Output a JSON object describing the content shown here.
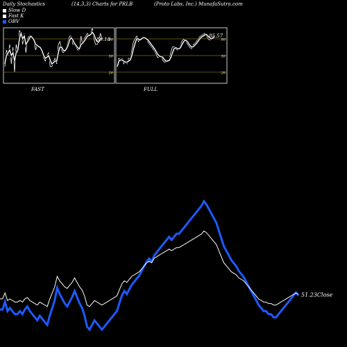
{
  "header": {
    "left": "Daily Stochastics",
    "middle": "(14,3,3) Charts for PRLB",
    "right": "(Proto  Labs,  Inc.) MunafaSutra.com"
  },
  "legend": [
    {
      "label": "Slow  D",
      "color": "#ffffff"
    },
    {
      "label": "Fast  K",
      "color": "#ffffff"
    },
    {
      "label": "OBV",
      "color": "#1e5aff"
    }
  ],
  "colors": {
    "background": "#000000",
    "line": "#ffffff",
    "obv": "#1e5aff",
    "level": "#8b6914"
  },
  "chart_data": [
    {
      "type": "line",
      "title": "FAST",
      "levels": [
        80,
        50,
        20
      ],
      "ylim": [
        0,
        100
      ],
      "value_label": "80.18",
      "series": [
        {
          "name": "Fast K",
          "values": [
            30,
            60,
            50,
            70,
            35,
            65,
            20,
            70,
            55,
            95,
            90,
            70,
            90,
            55,
            80,
            85,
            85,
            80,
            75,
            60,
            70,
            65,
            65,
            55,
            45,
            40,
            50,
            55,
            30,
            30,
            40,
            45,
            35,
            70,
            75,
            60,
            55,
            60,
            65,
            75,
            85,
            85,
            70,
            70,
            65,
            60,
            60,
            85,
            70,
            80,
            85,
            90,
            85,
            90,
            100,
            80,
            70,
            70,
            75,
            90,
            80
          ]
        },
        {
          "name": "Slow D",
          "values": [
            35,
            50,
            55,
            60,
            50,
            55,
            40,
            55,
            60,
            80,
            90,
            80,
            85,
            70,
            75,
            80,
            85,
            82,
            78,
            70,
            68,
            66,
            64,
            58,
            50,
            45,
            47,
            50,
            42,
            35,
            37,
            40,
            40,
            55,
            65,
            65,
            60,
            58,
            62,
            68,
            78,
            82,
            78,
            72,
            68,
            64,
            62,
            70,
            72,
            76,
            80,
            85,
            86,
            88,
            92,
            88,
            80,
            75,
            74,
            80,
            80
          ]
        }
      ]
    },
    {
      "type": "line",
      "title": "FULL",
      "levels": [
        80,
        50,
        20
      ],
      "ylim": [
        0,
        100
      ],
      "value_label": "85.57",
      "series": [
        {
          "name": "Fast K",
          "values": [
            30,
            45,
            40,
            45,
            35,
            40,
            35,
            45,
            45,
            60,
            75,
            80,
            85,
            75,
            80,
            82,
            84,
            82,
            80,
            74,
            70,
            66,
            62,
            58,
            52,
            46,
            48,
            50,
            42,
            38,
            38,
            42,
            42,
            55,
            65,
            66,
            62,
            60,
            62,
            68,
            76,
            80,
            78,
            72,
            68,
            64,
            62,
            70,
            72,
            76,
            80,
            84,
            86,
            88,
            90,
            86,
            80,
            78,
            80,
            84,
            86
          ]
        },
        {
          "name": "Slow D",
          "values": [
            30,
            40,
            42,
            42,
            40,
            38,
            38,
            40,
            42,
            50,
            62,
            72,
            80,
            80,
            78,
            80,
            82,
            82,
            80,
            78,
            74,
            70,
            66,
            62,
            57,
            52,
            49,
            48,
            47,
            43,
            40,
            40,
            41,
            46,
            54,
            62,
            64,
            63,
            62,
            64,
            70,
            75,
            78,
            76,
            72,
            68,
            65,
            66,
            69,
            72,
            76,
            80,
            83,
            85,
            87,
            88,
            85,
            82,
            80,
            81,
            84
          ]
        }
      ]
    },
    {
      "type": "line",
      "value_label": "51.23",
      "label_suffix": "Close",
      "series": [
        {
          "name": "Close",
          "values": [
            48,
            48,
            52,
            47,
            48,
            47,
            46,
            46,
            47,
            46,
            48,
            49,
            47,
            46,
            45,
            44,
            46,
            45,
            44,
            43,
            48,
            52,
            56,
            63,
            60,
            58,
            56,
            55,
            57,
            59,
            62,
            59,
            56,
            54,
            50,
            44,
            43,
            45,
            47,
            46,
            45,
            44,
            45,
            46,
            47,
            48,
            49,
            50,
            54,
            58,
            60,
            59,
            61,
            63,
            64,
            65,
            66,
            68,
            70,
            72,
            73,
            72,
            75,
            76,
            77,
            78,
            79,
            80,
            81,
            80,
            81,
            82,
            82,
            83,
            84,
            85,
            86,
            87,
            88,
            89,
            90,
            91,
            93,
            92,
            90,
            88,
            86,
            84,
            80,
            76,
            72,
            70,
            68,
            66,
            65,
            64,
            62,
            61,
            60,
            58,
            56,
            54,
            52,
            50,
            48,
            47,
            46,
            46,
            45,
            45,
            44,
            44,
            45,
            46,
            47,
            48,
            49,
            50,
            51,
            52,
            51
          ]
        }
      ]
    }
  ]
}
